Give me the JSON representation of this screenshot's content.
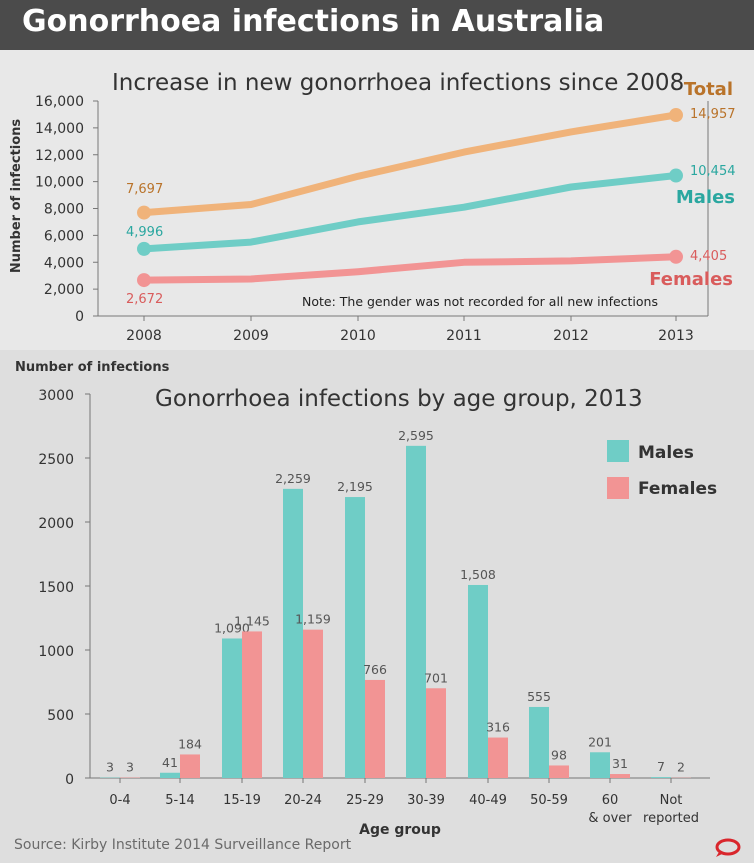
{
  "header": {
    "title": "Gonorrhoea infections in Australia"
  },
  "colors": {
    "total": "#f0b37a",
    "males": "#6fcdc6",
    "females": "#f29494",
    "total_text": "#b9732a",
    "males_text": "#2aa7a0",
    "females_text": "#d95c5c",
    "logo": "#d9262c"
  },
  "line_chart": {
    "title": "Increase in new gonorrhoea infections since 2008",
    "ylabel": "Number of infections",
    "note": "Note: The gender was not recorded for all new infections",
    "labels": {
      "total": "Total",
      "males": "Males",
      "females": "Females"
    },
    "start_labels": {
      "total": "7,697",
      "males": "4,996",
      "females": "2,672"
    },
    "end_labels": {
      "total": "14,957",
      "males": "10,454",
      "females": "4,405"
    }
  },
  "bar_chart": {
    "title": "Gonorrhoea infections by age group, 2013",
    "ylabel": "Number of infections",
    "xlabel": "Age group",
    "legend": {
      "males": "Males",
      "females": "Females"
    }
  },
  "source": "Source: Kirby Institute 2014 Surveillance Report",
  "logo_icon": "conversation-logo-icon",
  "chart_data": [
    {
      "type": "line",
      "title": "Increase in new gonorrhoea infections since 2008",
      "xlabel": "",
      "ylabel": "Number of infections",
      "x": [
        "2008",
        "2009",
        "2010",
        "2011",
        "2012",
        "2013"
      ],
      "ylim": [
        0,
        16000
      ],
      "yticks": [
        "0",
        "2,000",
        "4,000",
        "6,000",
        "8,000",
        "10,000",
        "12,000",
        "14,000",
        "16,000"
      ],
      "series": [
        {
          "name": "Total",
          "values": [
            7697,
            8300,
            10400,
            12200,
            13700,
            14957
          ]
        },
        {
          "name": "Males",
          "values": [
            4996,
            5500,
            7000,
            8100,
            9600,
            10454
          ]
        },
        {
          "name": "Females",
          "values": [
            2672,
            2750,
            3300,
            4000,
            4100,
            4405
          ]
        }
      ],
      "grid": false
    },
    {
      "type": "bar",
      "title": "Gonorrhoea infections by age group, 2013",
      "xlabel": "Age group",
      "ylabel": "Number of infections",
      "categories": [
        "0-4",
        "5-14",
        "15-19",
        "20-24",
        "25-29",
        "30-39",
        "40-49",
        "50-59",
        "60\n& over",
        "Not\nreported"
      ],
      "ylim": [
        0,
        3000
      ],
      "yticks": [
        "0",
        "500",
        "1000",
        "1500",
        "2000",
        "2500",
        "3000"
      ],
      "series": [
        {
          "name": "Males",
          "values": [
            3,
            41,
            1090,
            2259,
            2195,
            2595,
            1508,
            555,
            201,
            7
          ],
          "labels": [
            "3",
            "41",
            "1,090",
            "2,259",
            "2,195",
            "2,595",
            "1,508",
            "555",
            "201",
            "7"
          ]
        },
        {
          "name": "Females",
          "values": [
            3,
            184,
            1145,
            1159,
            766,
            701,
            316,
            98,
            31,
            2
          ],
          "labels": [
            "3",
            "184",
            "1,145",
            "1,159",
            "766",
            "701",
            "316",
            "98",
            "31",
            "2"
          ]
        }
      ],
      "legend": "top-right",
      "grid": false
    }
  ]
}
